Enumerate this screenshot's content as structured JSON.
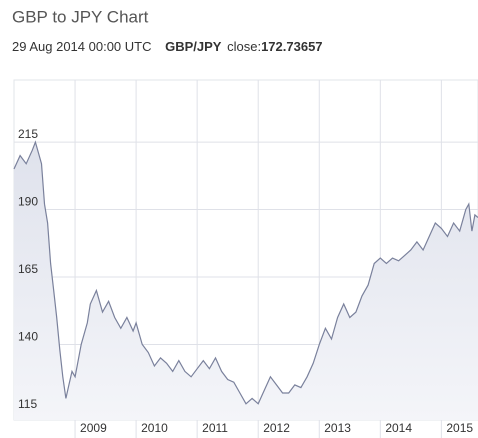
{
  "chart_data": {
    "type": "area",
    "title": "GBP to JPY Chart",
    "subtitle": {
      "date": "29 Aug 2014 00:00 UTC",
      "pair": "GBP/JPY",
      "close_label": "close:",
      "close": 172.73657
    },
    "color": "#7a819c",
    "x": [
      2008.0,
      2008.1,
      2008.2,
      2008.3,
      2008.35,
      2008.45,
      2008.5,
      2008.55,
      2008.6,
      2008.65,
      2008.7,
      2008.75,
      2008.8,
      2008.85,
      2008.9,
      2008.95,
      2009.0,
      2009.1,
      2009.2,
      2009.25,
      2009.35,
      2009.45,
      2009.55,
      2009.65,
      2009.75,
      2009.85,
      2009.95,
      2010.0,
      2010.1,
      2010.2,
      2010.3,
      2010.4,
      2010.5,
      2010.6,
      2010.7,
      2010.8,
      2010.9,
      2011.0,
      2011.1,
      2011.2,
      2011.3,
      2011.4,
      2011.5,
      2011.6,
      2011.7,
      2011.8,
      2011.9,
      2012.0,
      2012.1,
      2012.2,
      2012.3,
      2012.4,
      2012.5,
      2012.6,
      2012.7,
      2012.8,
      2012.9,
      2013.0,
      2013.1,
      2013.2,
      2013.3,
      2013.4,
      2013.5,
      2013.6,
      2013.7,
      2013.8,
      2013.9,
      2014.0,
      2014.1,
      2014.2,
      2014.3,
      2014.4,
      2014.5,
      2014.6,
      2014.7,
      2014.8,
      2014.9,
      2015.0,
      2015.1,
      2015.2,
      2015.3,
      2015.4,
      2015.45,
      2015.5,
      2015.55,
      2015.6
    ],
    "values": [
      205,
      210,
      207,
      212,
      215,
      207,
      192,
      185,
      170,
      160,
      150,
      138,
      128,
      120,
      125,
      130,
      128,
      140,
      148,
      155,
      160,
      152,
      156,
      150,
      146,
      150,
      145,
      148,
      140,
      137,
      132,
      135,
      133,
      130,
      134,
      130,
      128,
      131,
      134,
      131,
      135,
      130,
      127,
      126,
      122,
      118,
      120,
      118,
      123,
      128,
      125,
      122,
      122,
      125,
      124,
      128,
      133,
      140,
      146,
      142,
      150,
      155,
      150,
      152,
      158,
      162,
      170,
      172,
      170,
      172,
      171,
      173,
      175,
      178,
      175,
      180,
      185,
      183,
      180,
      185,
      182,
      190,
      192,
      182,
      188,
      187
    ],
    "xlim": [
      2008.0,
      2015.6
    ],
    "xticks": [
      2009,
      2010,
      2011,
      2012,
      2013,
      2014,
      2015
    ],
    "ylim": [
      112,
      238
    ],
    "yticks": [
      115,
      140,
      165,
      190,
      215
    ],
    "grid": true
  }
}
